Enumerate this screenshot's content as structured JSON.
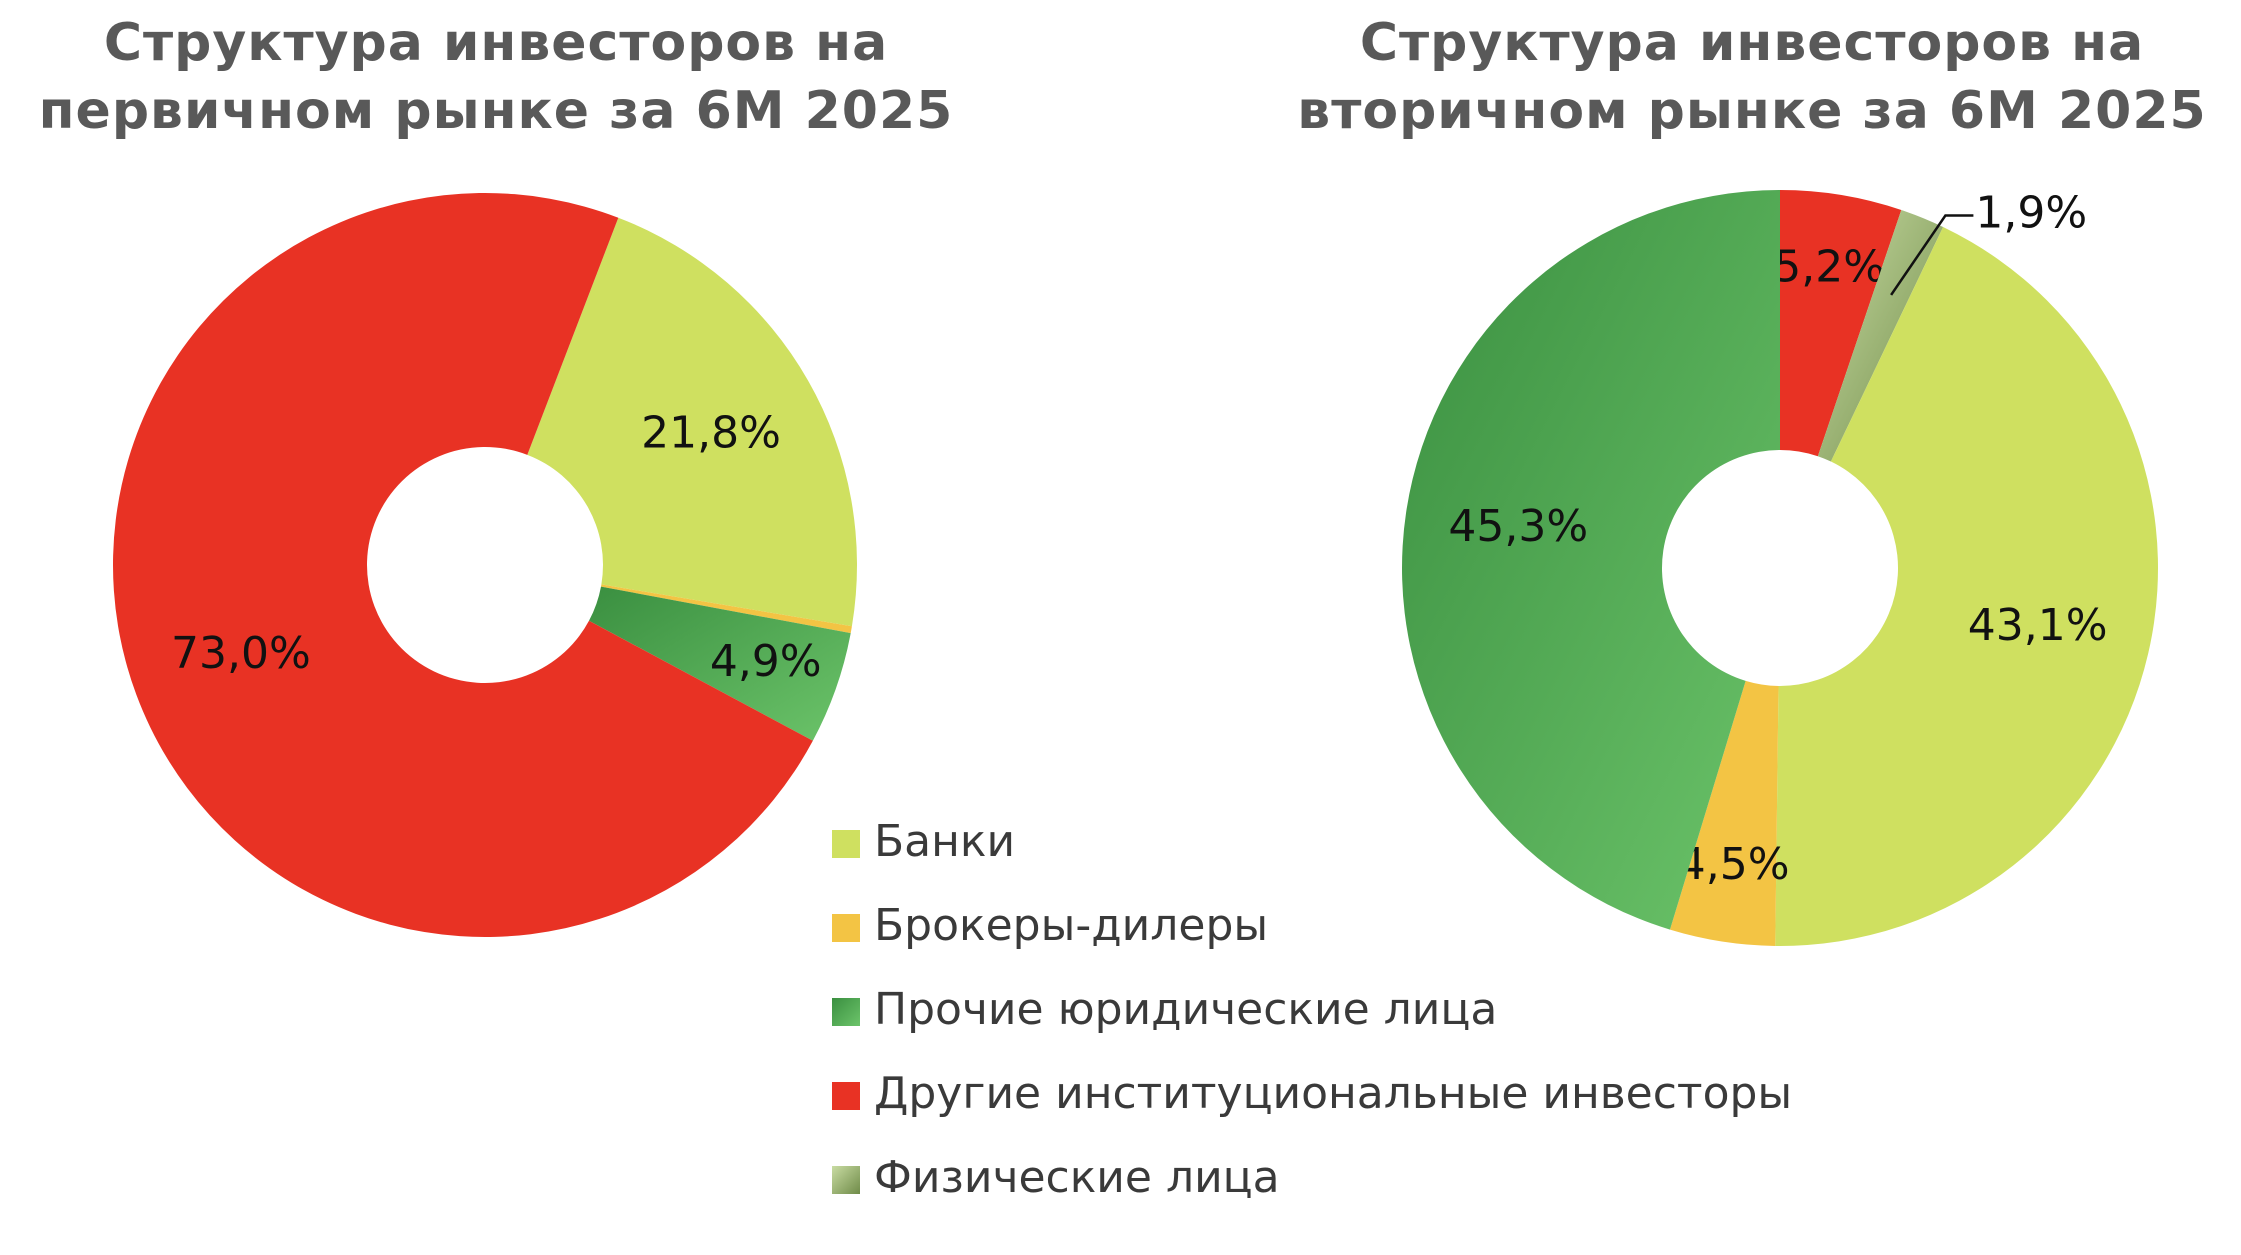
{
  "colors": {
    "banks": "#cfe060",
    "brokers": "#f3c444",
    "other_legal": "#4caf50",
    "other_legal_light": "#6cc46a",
    "other_legal_dark": "#3d9443",
    "institutional": "#e83224",
    "individuals_light": "#c9dca3",
    "individuals_dark": "#6f8b48",
    "label_line": "#111111"
  },
  "legend": [
    {
      "key": "banks",
      "label": "Банки",
      "icon": "legend-swatch-square"
    },
    {
      "key": "brokers",
      "label": "Брокеры-дилеры",
      "icon": "legend-swatch-square"
    },
    {
      "key": "other_legal",
      "label": "Прочие юридические лица",
      "icon": "legend-swatch-square"
    },
    {
      "key": "institutional",
      "label": "Другие институциональные инвесторы",
      "icon": "legend-swatch-square"
    },
    {
      "key": "individuals",
      "label": "Физические лица",
      "icon": "legend-swatch-square"
    }
  ],
  "chart_data": [
    {
      "type": "pie",
      "variant": "donut",
      "title_lines": [
        "Структура инвесторов на",
        "первичном рынке за 6М 2025"
      ],
      "legend_placement": "bottom-center",
      "slices": [
        {
          "key": "banks",
          "name": "Банки",
          "value": 21.8,
          "label": "21,8%"
        },
        {
          "key": "brokers",
          "name": "Брокеры-дилеры",
          "value": 0.3,
          "label": ""
        },
        {
          "key": "other_legal",
          "name": "Прочие юридические лица",
          "value": 4.9,
          "label": "4,9%"
        },
        {
          "key": "institutional",
          "name": "Другие институциональные инвесторы",
          "value": 73.0,
          "label": "73,0%"
        }
      ]
    },
    {
      "type": "pie",
      "variant": "donut",
      "title_lines": [
        "Структура инвесторов на",
        "вторичном рынке за 6М 2025"
      ],
      "legend_placement": "bottom-center",
      "slices": [
        {
          "key": "institutional",
          "name": "Другие институциональные инвесторы",
          "value": 5.2,
          "label": "5,2%"
        },
        {
          "key": "individuals",
          "name": "Физические лица",
          "value": 1.9,
          "label": "1,9%"
        },
        {
          "key": "banks",
          "name": "Банки",
          "value": 43.1,
          "label": "43,1%"
        },
        {
          "key": "brokers",
          "name": "Брокеры-дилеры",
          "value": 4.5,
          "label": "4,5%"
        },
        {
          "key": "other_legal",
          "name": "Прочие юридические лица",
          "value": 45.3,
          "label": "45,3%"
        }
      ]
    }
  ]
}
